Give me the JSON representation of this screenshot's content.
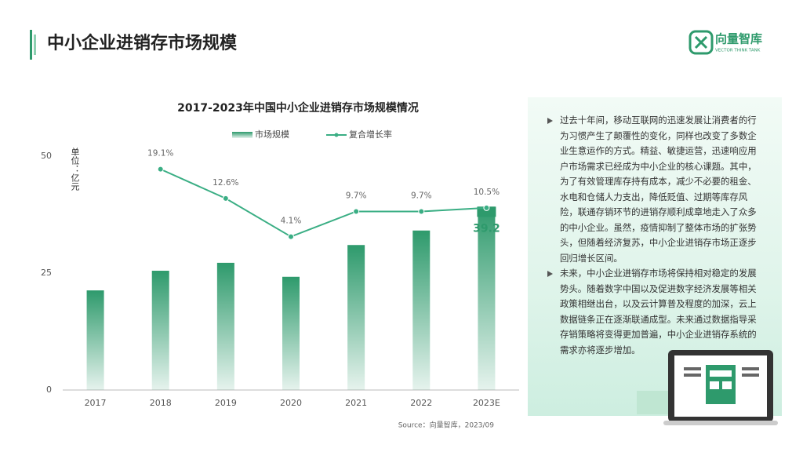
{
  "header": {
    "title": "中小企业进销存市场规模",
    "brand": "向量智库",
    "brand_sub": "VECTOR THINK TANK"
  },
  "chart_data": {
    "type": "bar",
    "title": "2017-2023年中国中小企业进销存市场规模情况",
    "y_label": "单位：亿元",
    "categories": [
      "2017",
      "2018",
      "2019",
      "2020",
      "2021",
      "2022",
      "2023E"
    ],
    "series": [
      {
        "name": "市场规模",
        "type": "bar",
        "color": "#2e9a6c",
        "values": [
          21.3,
          25.5,
          27.2,
          24.2,
          31.0,
          34.1,
          39.2
        ],
        "value_labels": [
          null,
          null,
          null,
          null,
          null,
          null,
          "39.2"
        ]
      },
      {
        "name": "复合增长率",
        "type": "line",
        "axis": "y2",
        "color": "#3aae84",
        "values": [
          null,
          19.1,
          12.6,
          4.1,
          9.7,
          9.7,
          10.5
        ],
        "value_labels": [
          null,
          "19.1%",
          "12.6%",
          "4.1%",
          "9.7%",
          "9.7%",
          "10.5%"
        ]
      }
    ],
    "ylim": [
      0,
      50
    ],
    "yticks": [
      0,
      25,
      50
    ],
    "y2lim": [
      -30,
      22
    ],
    "legend": "top"
  },
  "bullets": [
    "过去十年间，移动互联网的迅速发展让消费者的行为习惯产生了颠覆性的变化，同样也改变了多数企业生意运作的方式。精益、敏捷运营，迅速响应用户市场需求已经成为中小企业的核心课题。其中，为了有效管理库存持有成本，减少不必要的租金、水电和仓储人力支出，降低贬值、过期等库存风险，联通存销环节的进销存顺利成章地走入了众多的中小企业。虽然，疫情抑制了整体市场的扩张势头，但随着经济复苏，中小企业进销存市场正逐步回归增长区间。",
    "未来，中小企业进销存市场将保持相对稳定的发展势头。随着数字中国以及促进数字经济发展等相关政策相继出台，以及云计算普及程度的加深，云上数据链条正在逐渐联通成型。未来通过数据指导采存销策略将变得更加普遍，中小企业进销存系统的需求亦将逐步增加。"
  ],
  "source": "Source：向量智库，2023/09"
}
